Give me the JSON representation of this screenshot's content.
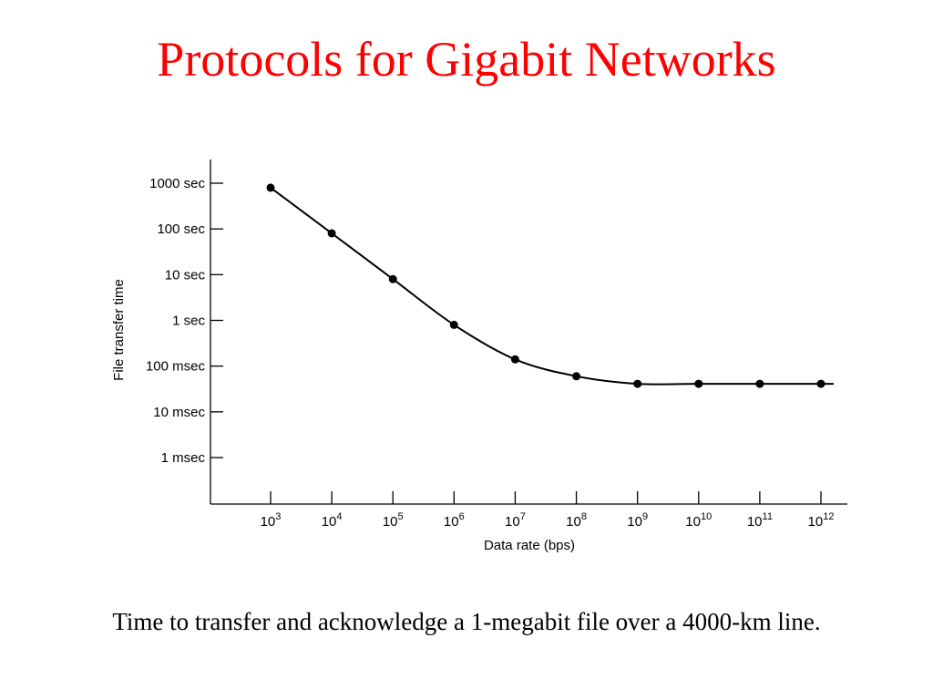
{
  "slide": {
    "title": "Protocols for Gigabit Networks",
    "caption": "Time to transfer and acknowledge a 1-megabit file over a 4000-km line.",
    "title_color": "#ff0000"
  },
  "chart_data": {
    "type": "line",
    "title": "",
    "xlabel": "Data rate (bps)",
    "ylabel": "File transfer time",
    "x_scale": "log",
    "y_scale": "log",
    "x_ticks": [
      {
        "base": "10",
        "exp": "3"
      },
      {
        "base": "10",
        "exp": "4"
      },
      {
        "base": "10",
        "exp": "5"
      },
      {
        "base": "10",
        "exp": "6"
      },
      {
        "base": "10",
        "exp": "7"
      },
      {
        "base": "10",
        "exp": "8"
      },
      {
        "base": "10",
        "exp": "9"
      },
      {
        "base": "10",
        "exp": "10"
      },
      {
        "base": "10",
        "exp": "11"
      },
      {
        "base": "10",
        "exp": "12"
      }
    ],
    "y_ticks": [
      "1000 sec",
      "100 sec",
      "10 sec",
      "1 sec",
      "100 msec",
      "10 msec",
      "1 msec"
    ],
    "x_unit": "bps",
    "y_unit": "sec",
    "xlim": [
      1000,
      1000000000000
    ],
    "ylim": [
      0.001,
      1000
    ],
    "grid": false,
    "legend": "none",
    "line_color": "#000000",
    "series": [
      {
        "x": [
          1000,
          10000,
          100000,
          1000000,
          10000000,
          100000000,
          1000000000,
          10000000000,
          100000000000,
          1000000000000
        ],
        "y": [
          800,
          80,
          8,
          0.8,
          0.14,
          0.06,
          0.041,
          0.041,
          0.041,
          0.041
        ]
      }
    ]
  }
}
